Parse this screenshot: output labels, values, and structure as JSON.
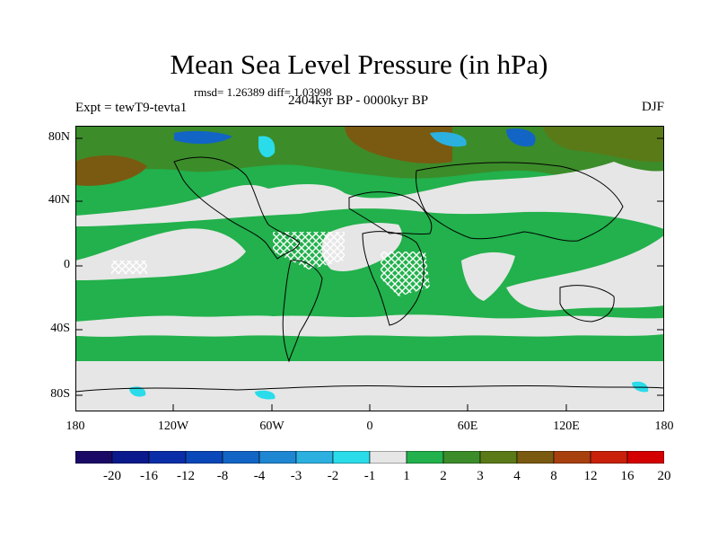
{
  "title": "Mean Sea Level Pressure (in hPa)",
  "stats": "rmsd= 1.26389 diff= 1.03998",
  "experiment": "Expt = tewT9-tevta1",
  "period": "2404kyr BP - 0000kyr BP",
  "season": "DJF",
  "lat_labels": [
    "80N",
    "40N",
    "0",
    "40S",
    "80S"
  ],
  "lon_labels": [
    "180",
    "120W",
    "60W",
    "0",
    "60E",
    "120E",
    "180"
  ],
  "colorbar": {
    "labels": [
      "-20",
      "-16",
      "-12",
      "-8",
      "-4",
      "-3",
      "-2",
      "-1",
      "1",
      "2",
      "3",
      "4",
      "8",
      "12",
      "16",
      "20"
    ],
    "colors": [
      "#1a0a66",
      "#0a1a8c",
      "#0a2ea8",
      "#0a47b8",
      "#1265c4",
      "#1f86d2",
      "#2bb0e0",
      "#2adcea",
      "#e6e6e6",
      "#22b14c",
      "#3c8c2a",
      "#5a7a18",
      "#7a5a10",
      "#a8400e",
      "#c8200a",
      "#d40000"
    ]
  },
  "field_colors": {
    "ocean_neutral": "#e6e6e6",
    "green_1_2": "#22b14c",
    "green_2_3": "#3c8c2a",
    "olive_3_4": "#5a7a18",
    "brown_4_8": "#7a5a10",
    "cyan_-2_-1": "#2adcea",
    "blue_-4_-3": "#1265c4"
  }
}
